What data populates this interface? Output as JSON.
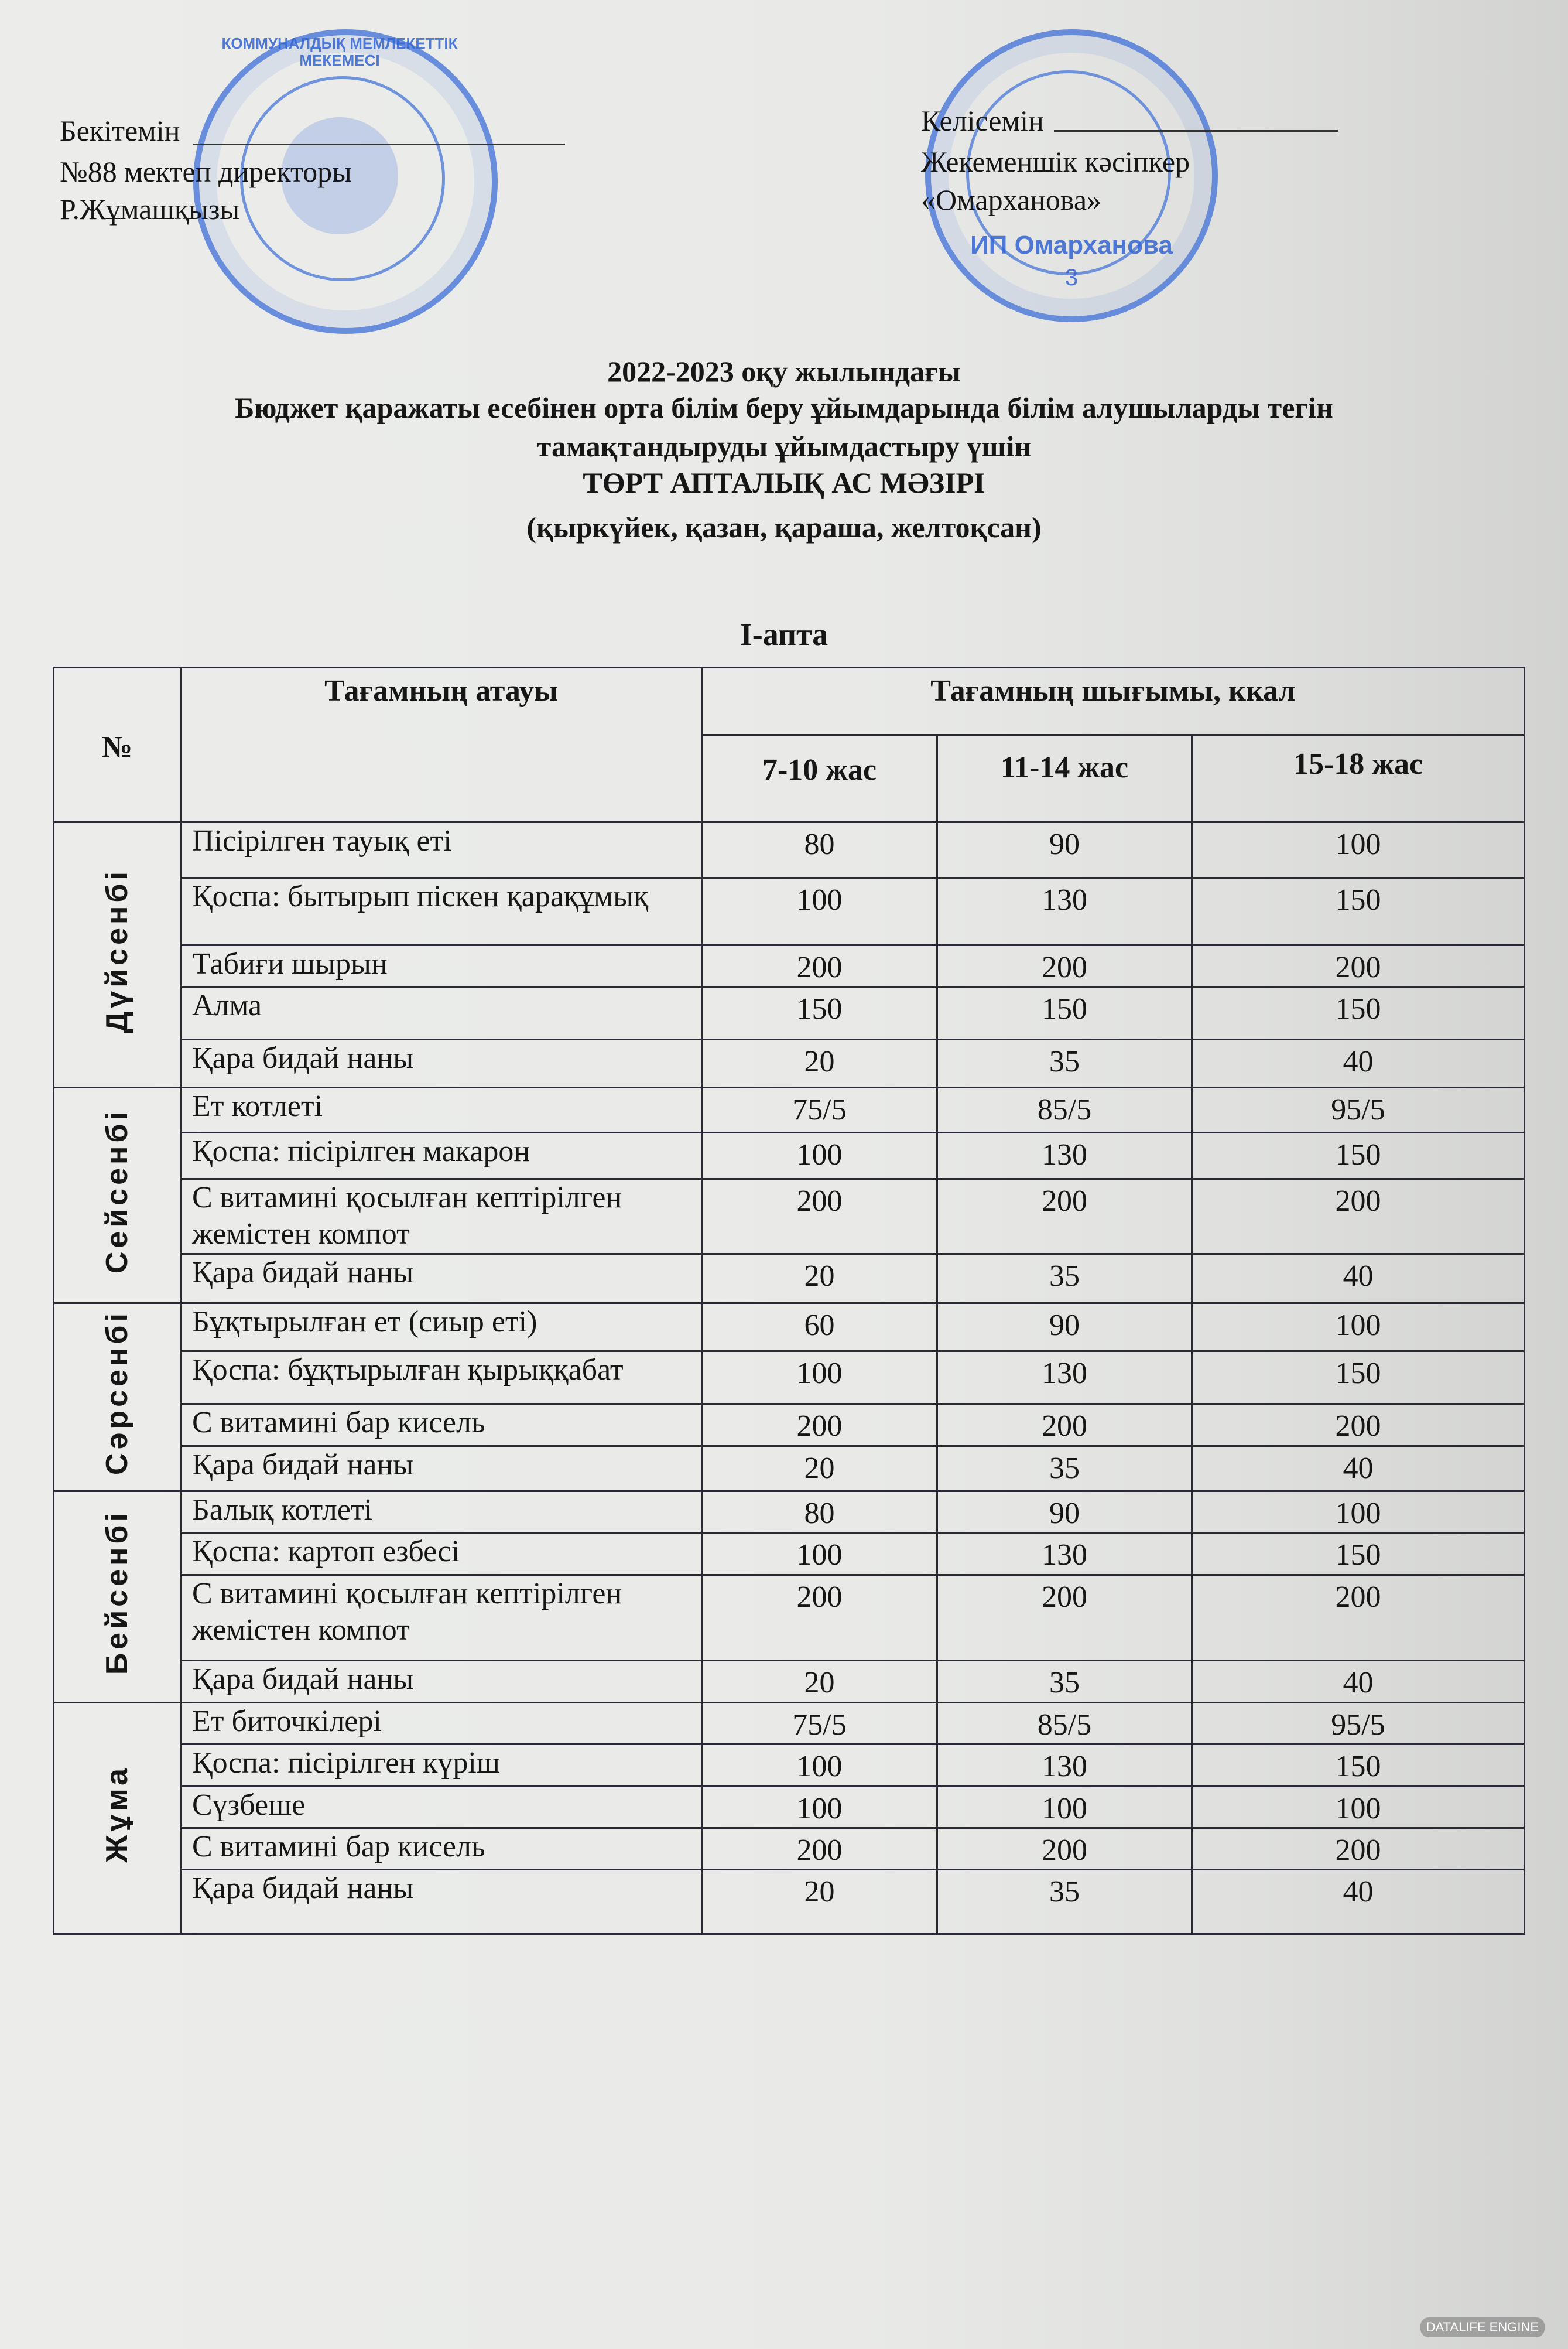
{
  "approval_left": {
    "label": "Бекітемін",
    "position": "№88 мектеп директоры",
    "name": "Р.Жұмашқызы"
  },
  "approval_right": {
    "label": "Келісемін",
    "position": "Жекеменшік кәсіпкер",
    "name": "«Омарханова»"
  },
  "stamps": {
    "left_text": "КОММУНАЛДЫҚ МЕМЛЕКЕТТІК МЕКЕМЕСІ",
    "right_text": "ИП Омарханова",
    "right_number": "3",
    "color": "#3c6ed7"
  },
  "title": {
    "line1": "2022-2023 оқу жылындағы",
    "line2": "Бюджет қаражаты есебінен орта білім беру ұйымдарында білім алушыларды тегін",
    "line3": "тамақтандыруды ұйымдастыру үшін",
    "line4": "ТӨРТ АПТАЛЫҚ АС МӘЗІРІ",
    "line5": "(қыркүйек, қазан, қараша, желтоқсан)"
  },
  "week_label": "I-апта",
  "table": {
    "headers": {
      "number": "№",
      "dish": "Тағамның атауы",
      "output": "Тағамның шығымы, ккал",
      "age1": "7-10 жас",
      "age2": "11-14 жас",
      "age3": "15-18 жас"
    },
    "days": [
      {
        "day": "Дүйсенбі",
        "rows": [
          [
            "Пісірілген тауық еті",
            "80",
            "90",
            "100"
          ],
          [
            "Қоспа: бытырып піскен қарақұмық",
            "100",
            "130",
            "150"
          ],
          [
            "Табиғи шырын",
            "200",
            "200",
            "200"
          ],
          [
            "Алма",
            "150",
            "150",
            "150"
          ],
          [
            "Қара бидай наны",
            "20",
            "35",
            "40"
          ]
        ]
      },
      {
        "day": "Сейсенбі",
        "rows": [
          [
            "Ет котлеті",
            "75/5",
            "85/5",
            "95/5"
          ],
          [
            "Қоспа:  пісірілген макарон",
            "100",
            "130",
            "150"
          ],
          [
            "С витамині қосылған кептірілген жемістен компот",
            "200",
            "200",
            "200"
          ],
          [
            "Қара бидай наны",
            "20",
            "35",
            "40"
          ]
        ]
      },
      {
        "day": "Сәрсенбі",
        "rows": [
          [
            "Бұқтырылған ет (сиыр еті)",
            "60",
            "90",
            "100"
          ],
          [
            "Қоспа: бұқтырылған қырыққабат",
            "100",
            "130",
            "150"
          ],
          [
            "С витамині бар кисель",
            "200",
            "200",
            "200"
          ],
          [
            "Қара бидай наны",
            "20",
            "35",
            "40"
          ]
        ]
      },
      {
        "day": "Бейсенбі",
        "rows": [
          [
            "Балық котлеті",
            "80",
            "90",
            "100"
          ],
          [
            "Қоспа: картоп езбесі",
            "100",
            "130",
            "150"
          ],
          [
            "С витамині қосылған кептірілген жемістен компот",
            "200",
            "200",
            "200"
          ],
          [
            "Қара бидай наны",
            "20",
            "35",
            "40"
          ]
        ]
      },
      {
        "day": "Жұма",
        "rows": [
          [
            "Ет биточкілері",
            "75/5",
            "85/5",
            "95/5"
          ],
          [
            "Қоспа: пісірілген күріш",
            "100",
            "130",
            "150"
          ],
          [
            "Сүзбеше",
            "100",
            "100",
            "100"
          ],
          [
            "С витамині бар кисель",
            "200",
            "200",
            "200"
          ],
          [
            "Қара бидай наны",
            "20",
            "35",
            "40"
          ]
        ]
      }
    ]
  },
  "watermark": "DATALIFE ENGINE"
}
